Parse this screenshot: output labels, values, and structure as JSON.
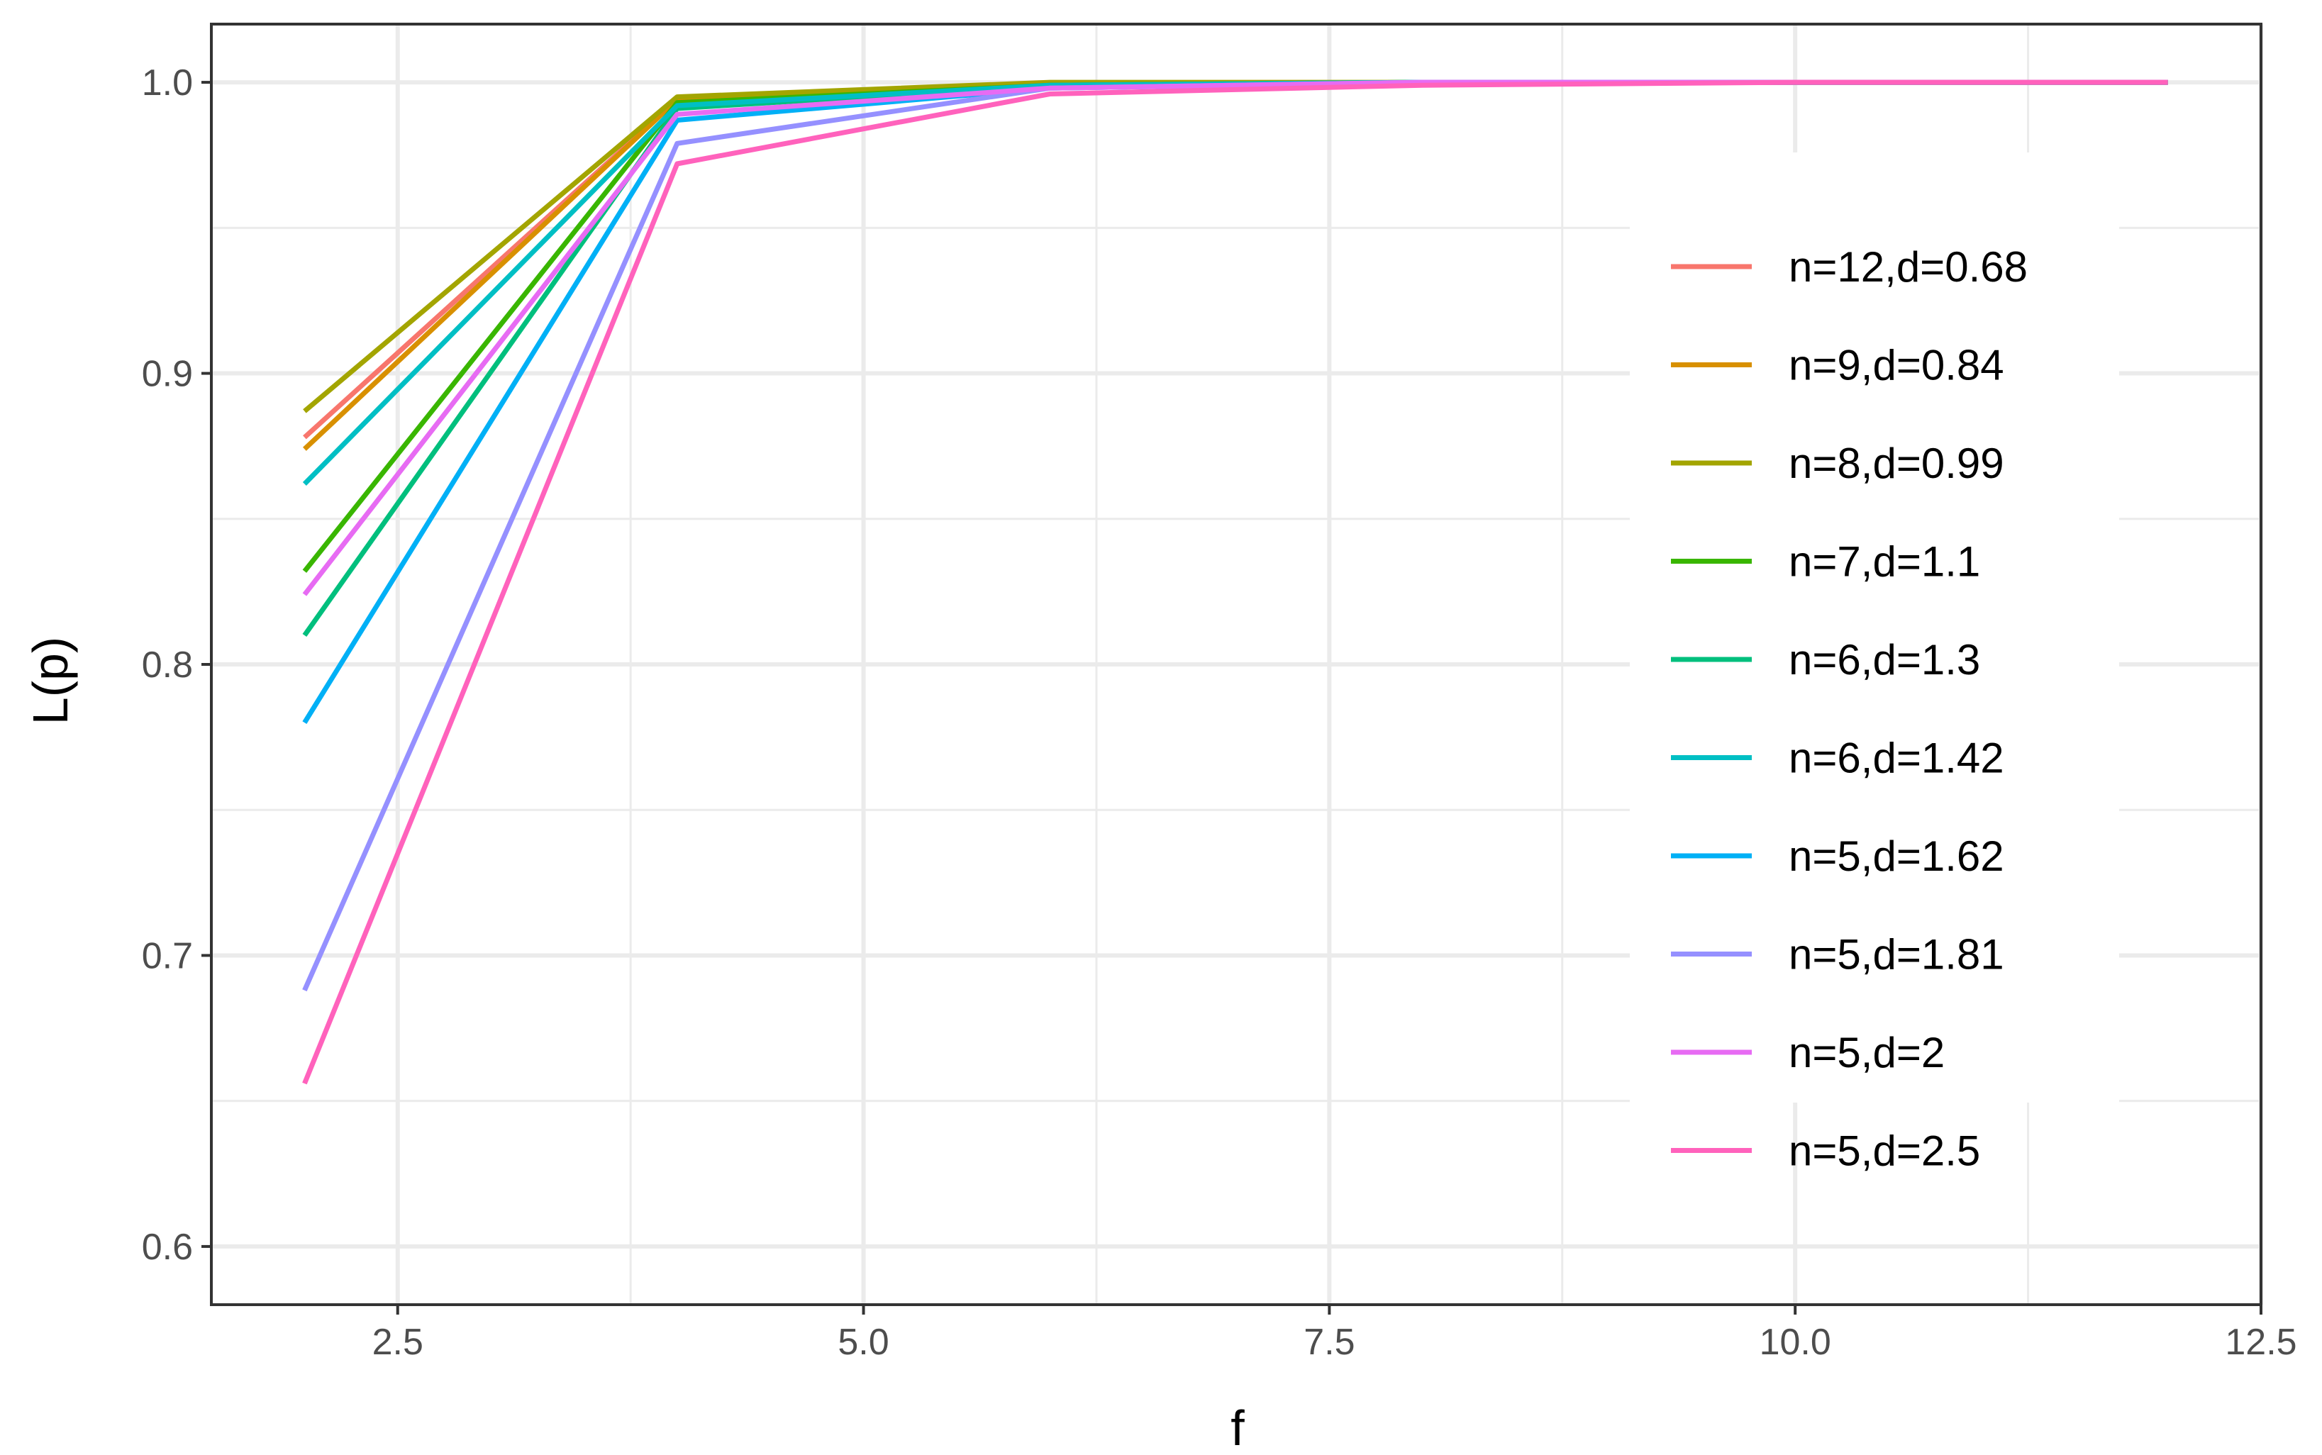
{
  "chart_data": {
    "type": "line",
    "title": "",
    "xlabel": "f",
    "ylabel": "L(p)",
    "xlim": [
      1.5,
      12.5
    ],
    "ylim": [
      0.58,
      1.02
    ],
    "x_ticks": [
      "2.5",
      "5.0",
      "7.5",
      "10.0",
      "12.5"
    ],
    "y_ticks": [
      "0.6",
      "0.7",
      "0.8",
      "0.9",
      "1.0"
    ],
    "x_tick_values": [
      2.5,
      5.0,
      7.5,
      10.0,
      12.5
    ],
    "y_tick_values": [
      0.6,
      0.7,
      0.8,
      0.9,
      1.0
    ],
    "grid": true,
    "legend_position": "right-inside",
    "series": [
      {
        "name": "n=12,d=0.68",
        "color": "#F8766D",
        "x": [
          2,
          4,
          6,
          8,
          10,
          12
        ],
        "y": [
          0.878,
          0.994,
          0.999,
          1.0,
          1.0,
          1.0
        ]
      },
      {
        "name": "n=9,d=0.84",
        "color": "#D89000",
        "x": [
          2,
          4,
          6,
          8,
          10,
          12
        ],
        "y": [
          0.874,
          0.994,
          0.999,
          1.0,
          1.0,
          1.0
        ]
      },
      {
        "name": "n=8,d=0.99",
        "color": "#A3A500",
        "x": [
          2,
          4,
          6,
          8,
          10,
          12
        ],
        "y": [
          0.887,
          0.995,
          1.0,
          1.0,
          1.0,
          1.0
        ]
      },
      {
        "name": "n=7,d=1.1",
        "color": "#39B600",
        "x": [
          2,
          4,
          6,
          8,
          10,
          12
        ],
        "y": [
          0.832,
          0.993,
          0.999,
          1.0,
          1.0,
          1.0
        ]
      },
      {
        "name": "n=6,d=1.3",
        "color": "#00BF7D",
        "x": [
          2,
          4,
          6,
          8,
          10,
          12
        ],
        "y": [
          0.81,
          0.991,
          0.999,
          1.0,
          1.0,
          1.0
        ]
      },
      {
        "name": "n=6,d=1.42",
        "color": "#00BFC4",
        "x": [
          2,
          4,
          6,
          8,
          10,
          12
        ],
        "y": [
          0.862,
          0.992,
          0.999,
          1.0,
          1.0,
          1.0
        ]
      },
      {
        "name": "n=5,d=1.62",
        "color": "#00B0F6",
        "x": [
          2,
          4,
          6,
          8,
          10,
          12
        ],
        "y": [
          0.78,
          0.987,
          0.998,
          1.0,
          1.0,
          1.0
        ]
      },
      {
        "name": "n=5,d=1.81",
        "color": "#9590FF",
        "x": [
          2,
          4,
          6,
          8,
          10,
          12
        ],
        "y": [
          0.688,
          0.979,
          0.998,
          1.0,
          1.0,
          1.0
        ]
      },
      {
        "name": "n=5,d=2",
        "color": "#E76BF3",
        "x": [
          2,
          4,
          6,
          8,
          10,
          12
        ],
        "y": [
          0.824,
          0.989,
          0.998,
          1.0,
          1.0,
          1.0
        ]
      },
      {
        "name": "n=5,d=2.5",
        "color": "#FF62BC",
        "x": [
          2,
          4,
          6,
          8,
          10,
          12
        ],
        "y": [
          0.656,
          0.972,
          0.996,
          0.999,
          1.0,
          1.0
        ]
      }
    ]
  }
}
